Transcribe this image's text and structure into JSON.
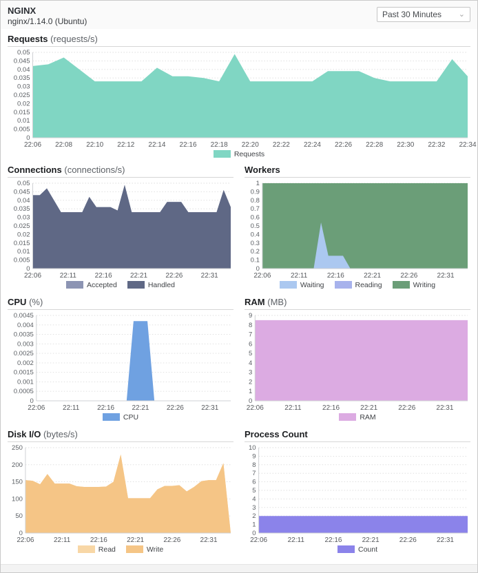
{
  "header": {
    "title": "NGINX",
    "subtitle": "nginx/1.14.0 (Ubuntu)",
    "time_range_select": {
      "selected": "Past 30 Minutes",
      "caret_icon": "chevron-down"
    }
  },
  "chart_data": [
    {
      "id": "requests",
      "type": "area",
      "title": "Requests",
      "unit": "(requests/s)",
      "x": [
        "22:06",
        "22:07",
        "22:08",
        "22:09",
        "22:10",
        "22:11",
        "22:12",
        "22:13",
        "22:14",
        "22:15",
        "22:16",
        "22:17",
        "22:18",
        "22:19",
        "22:20",
        "22:21",
        "22:22",
        "22:23",
        "22:24",
        "22:25",
        "22:26",
        "22:27",
        "22:28",
        "22:29",
        "22:30",
        "22:31",
        "22:32",
        "22:33",
        "22:34"
      ],
      "x_tick_pos": [
        0,
        2,
        4,
        6,
        8,
        10,
        12,
        14,
        16,
        18,
        20,
        22,
        24,
        26,
        28
      ],
      "x_tick_labels": [
        "22:06",
        "22:08",
        "22:10",
        "22:12",
        "22:14",
        "22:16",
        "22:18",
        "22:20",
        "22:22",
        "22:24",
        "22:26",
        "22:28",
        "22:30",
        "22:32",
        "22:34"
      ],
      "ylim": [
        0,
        0.05
      ],
      "yticks": [
        0,
        0.005,
        0.01,
        0.015,
        0.02,
        0.025,
        0.03,
        0.035,
        0.04,
        0.045,
        0.05
      ],
      "grid": "dotted-horizontal",
      "legend_position": "bottom",
      "series": [
        {
          "name": "Requests",
          "color": "#80d6c3",
          "values": [
            0.042,
            0.043,
            0.047,
            0.04,
            0.033,
            0.033,
            0.033,
            0.033,
            0.041,
            0.036,
            0.036,
            0.035,
            0.033,
            0.049,
            0.033,
            0.033,
            0.033,
            0.033,
            0.033,
            0.039,
            0.039,
            0.039,
            0.035,
            0.033,
            0.033,
            0.033,
            0.033,
            0.046,
            0.036
          ]
        }
      ]
    },
    {
      "id": "connections",
      "type": "area",
      "title": "Connections",
      "unit": "(connections/s)",
      "x": [
        "22:06",
        "22:07",
        "22:08",
        "22:09",
        "22:10",
        "22:11",
        "22:12",
        "22:13",
        "22:14",
        "22:15",
        "22:16",
        "22:17",
        "22:18",
        "22:19",
        "22:20",
        "22:21",
        "22:22",
        "22:23",
        "22:24",
        "22:25",
        "22:26",
        "22:27",
        "22:28",
        "22:29",
        "22:30",
        "22:31",
        "22:32",
        "22:33",
        "22:34"
      ],
      "x_tick_pos": [
        0,
        5,
        10,
        15,
        20,
        25
      ],
      "x_tick_labels": [
        "22:06",
        "22:11",
        "22:16",
        "22:21",
        "22:26",
        "22:31"
      ],
      "ylim": [
        0,
        0.05
      ],
      "yticks": [
        0,
        0.005,
        0.01,
        0.015,
        0.02,
        0.025,
        0.03,
        0.035,
        0.04,
        0.045,
        0.05
      ],
      "grid": "dotted-horizontal",
      "legend_position": "bottom",
      "series": [
        {
          "name": "Accepted",
          "color": "#8c94b3",
          "values": [
            0.043,
            0.043,
            0.047,
            0.04,
            0.033,
            0.033,
            0.033,
            0.033,
            0.042,
            0.036,
            0.036,
            0.036,
            0.034,
            0.049,
            0.033,
            0.033,
            0.033,
            0.033,
            0.033,
            0.039,
            0.039,
            0.039,
            0.033,
            0.033,
            0.033,
            0.033,
            0.033,
            0.046,
            0.036
          ]
        },
        {
          "name": "Handled",
          "color": "#5f6885",
          "values": [
            0.043,
            0.043,
            0.047,
            0.04,
            0.033,
            0.033,
            0.033,
            0.033,
            0.042,
            0.036,
            0.036,
            0.036,
            0.034,
            0.049,
            0.033,
            0.033,
            0.033,
            0.033,
            0.033,
            0.039,
            0.039,
            0.039,
            0.033,
            0.033,
            0.033,
            0.033,
            0.033,
            0.046,
            0.036
          ]
        }
      ]
    },
    {
      "id": "workers",
      "type": "area",
      "title": "Workers",
      "unit": "",
      "x": [
        "22:06",
        "22:07",
        "22:08",
        "22:09",
        "22:10",
        "22:11",
        "22:12",
        "22:13",
        "22:14",
        "22:15",
        "22:16",
        "22:17",
        "22:18",
        "22:19",
        "22:20",
        "22:21",
        "22:22",
        "22:23",
        "22:24",
        "22:25",
        "22:26",
        "22:27",
        "22:28",
        "22:29",
        "22:30",
        "22:31",
        "22:32",
        "22:33",
        "22:34"
      ],
      "x_tick_pos": [
        0,
        5,
        10,
        15,
        20,
        25
      ],
      "x_tick_labels": [
        "22:06",
        "22:11",
        "22:16",
        "22:21",
        "22:26",
        "22:31"
      ],
      "ylim": [
        0,
        1
      ],
      "yticks": [
        0,
        0.1,
        0.2,
        0.3,
        0.4,
        0.5,
        0.6,
        0.7,
        0.8,
        0.9,
        1
      ],
      "grid": "dotted-horizontal",
      "legend_position": "bottom",
      "series": [
        {
          "name": "Waiting",
          "color": "#abc8f0",
          "z": 3,
          "values": [
            0,
            0,
            0,
            0,
            0,
            0,
            0,
            0,
            0.54,
            0.15,
            0.15,
            0.15,
            0,
            0,
            0,
            0,
            0,
            0,
            0,
            0,
            0,
            0,
            0,
            0,
            0,
            0,
            0,
            0,
            0
          ]
        },
        {
          "name": "Reading",
          "color": "#a7b2ec",
          "z": 2,
          "values": [
            0,
            0,
            0,
            0,
            0,
            0,
            0,
            0,
            0,
            0,
            0,
            0,
            0,
            0,
            0,
            0,
            0,
            0,
            0,
            0,
            0,
            0,
            0,
            0,
            0,
            0,
            0,
            0,
            0
          ]
        },
        {
          "name": "Writing",
          "color": "#6b9e78",
          "z": 1,
          "values": [
            1,
            1,
            1,
            1,
            1,
            1,
            1,
            1,
            1,
            1,
            1,
            1,
            1,
            1,
            1,
            1,
            1,
            1,
            1,
            1,
            1,
            1,
            1,
            1,
            1,
            1,
            1,
            1,
            1
          ]
        }
      ]
    },
    {
      "id": "cpu",
      "type": "area",
      "title": "CPU",
      "unit": "(%)",
      "x": [
        "22:06",
        "22:07",
        "22:08",
        "22:09",
        "22:10",
        "22:11",
        "22:12",
        "22:13",
        "22:14",
        "22:15",
        "22:16",
        "22:17",
        "22:18",
        "22:19",
        "22:20",
        "22:21",
        "22:22",
        "22:23",
        "22:24",
        "22:25",
        "22:26",
        "22:27",
        "22:28",
        "22:29",
        "22:30",
        "22:31",
        "22:32",
        "22:33",
        "22:34"
      ],
      "x_tick_pos": [
        0,
        5,
        10,
        15,
        20,
        25
      ],
      "x_tick_labels": [
        "22:06",
        "22:11",
        "22:16",
        "22:21",
        "22:26",
        "22:31"
      ],
      "ylim": [
        0,
        0.0045
      ],
      "yticks": [
        0,
        0.0005,
        0.001,
        0.0015,
        0.002,
        0.0025,
        0.003,
        0.0035,
        0.004,
        0.0045
      ],
      "grid": "dotted-horizontal",
      "legend_position": "bottom",
      "series": [
        {
          "name": "CPU",
          "color": "#6fa1e1",
          "values": [
            0,
            0,
            0,
            0,
            0,
            0,
            0,
            0,
            0,
            0,
            0,
            0,
            0,
            0,
            0.0042,
            0.0042,
            0.0042,
            0,
            0,
            0,
            0,
            0,
            0,
            0,
            0,
            0,
            0,
            0,
            0
          ]
        }
      ]
    },
    {
      "id": "ram",
      "type": "area",
      "title": "RAM",
      "unit": "(MB)",
      "x": [
        "22:06",
        "22:07",
        "22:08",
        "22:09",
        "22:10",
        "22:11",
        "22:12",
        "22:13",
        "22:14",
        "22:15",
        "22:16",
        "22:17",
        "22:18",
        "22:19",
        "22:20",
        "22:21",
        "22:22",
        "22:23",
        "22:24",
        "22:25",
        "22:26",
        "22:27",
        "22:28",
        "22:29",
        "22:30",
        "22:31",
        "22:32",
        "22:33",
        "22:34"
      ],
      "x_tick_pos": [
        0,
        5,
        10,
        15,
        20,
        25
      ],
      "x_tick_labels": [
        "22:06",
        "22:11",
        "22:16",
        "22:21",
        "22:26",
        "22:31"
      ],
      "ylim": [
        0,
        9
      ],
      "yticks": [
        0,
        1,
        2,
        3,
        4,
        5,
        6,
        7,
        8,
        9
      ],
      "grid": "dotted-horizontal",
      "legend_position": "bottom",
      "series": [
        {
          "name": "RAM",
          "color": "#dcabe2",
          "values": [
            8.5,
            8.5,
            8.5,
            8.5,
            8.5,
            8.5,
            8.5,
            8.5,
            8.5,
            8.5,
            8.5,
            8.5,
            8.5,
            8.5,
            8.5,
            8.5,
            8.5,
            8.5,
            8.5,
            8.5,
            8.5,
            8.5,
            8.5,
            8.5,
            8.5,
            8.5,
            8.5,
            8.5,
            8.5
          ]
        }
      ]
    },
    {
      "id": "disk-io",
      "type": "area",
      "title": "Disk I/O",
      "unit": "(bytes/s)",
      "x": [
        "22:06",
        "22:07",
        "22:08",
        "22:09",
        "22:10",
        "22:11",
        "22:12",
        "22:13",
        "22:14",
        "22:15",
        "22:16",
        "22:17",
        "22:18",
        "22:19",
        "22:20",
        "22:21",
        "22:22",
        "22:23",
        "22:24",
        "22:25",
        "22:26",
        "22:27",
        "22:28",
        "22:29",
        "22:30",
        "22:31",
        "22:32",
        "22:33",
        "22:34"
      ],
      "x_tick_pos": [
        0,
        5,
        10,
        15,
        20,
        25
      ],
      "x_tick_labels": [
        "22:06",
        "22:11",
        "22:16",
        "22:21",
        "22:26",
        "22:31"
      ],
      "ylim": [
        0,
        250
      ],
      "yticks": [
        0,
        50,
        100,
        150,
        200,
        250
      ],
      "grid": "dotted-horizontal",
      "legend_position": "bottom",
      "series": [
        {
          "name": "Read",
          "color": "#f8d7a6",
          "values": [
            155,
            153,
            143,
            173,
            145,
            145,
            145,
            137,
            135,
            135,
            135,
            136,
            150,
            230,
            102,
            102,
            102,
            102,
            128,
            138,
            138,
            140,
            122,
            135,
            152,
            155,
            155,
            205,
            0
          ]
        },
        {
          "name": "Write",
          "color": "#f5c586",
          "values": [
            155,
            153,
            143,
            173,
            145,
            145,
            145,
            137,
            135,
            135,
            135,
            136,
            150,
            230,
            102,
            102,
            102,
            102,
            128,
            138,
            138,
            140,
            122,
            135,
            152,
            155,
            155,
            205,
            0
          ]
        }
      ]
    },
    {
      "id": "process-count",
      "type": "area",
      "title": "Process Count",
      "unit": "",
      "x": [
        "22:06",
        "22:07",
        "22:08",
        "22:09",
        "22:10",
        "22:11",
        "22:12",
        "22:13",
        "22:14",
        "22:15",
        "22:16",
        "22:17",
        "22:18",
        "22:19",
        "22:20",
        "22:21",
        "22:22",
        "22:23",
        "22:24",
        "22:25",
        "22:26",
        "22:27",
        "22:28",
        "22:29",
        "22:30",
        "22:31",
        "22:32",
        "22:33",
        "22:34"
      ],
      "x_tick_pos": [
        0,
        5,
        10,
        15,
        20,
        25
      ],
      "x_tick_labels": [
        "22:06",
        "22:11",
        "22:16",
        "22:21",
        "22:26",
        "22:31"
      ],
      "ylim": [
        0,
        10
      ],
      "yticks": [
        0,
        1,
        2,
        3,
        4,
        5,
        6,
        7,
        8,
        9,
        10
      ],
      "grid": "dotted-horizontal",
      "legend_position": "bottom",
      "series": [
        {
          "name": "Count",
          "color": "#8b83ea",
          "values": [
            2,
            2,
            2,
            2,
            2,
            2,
            2,
            2,
            2,
            2,
            2,
            2,
            2,
            2,
            2,
            2,
            2,
            2,
            2,
            2,
            2,
            2,
            2,
            2,
            2,
            2,
            2,
            2,
            2
          ]
        }
      ]
    }
  ]
}
